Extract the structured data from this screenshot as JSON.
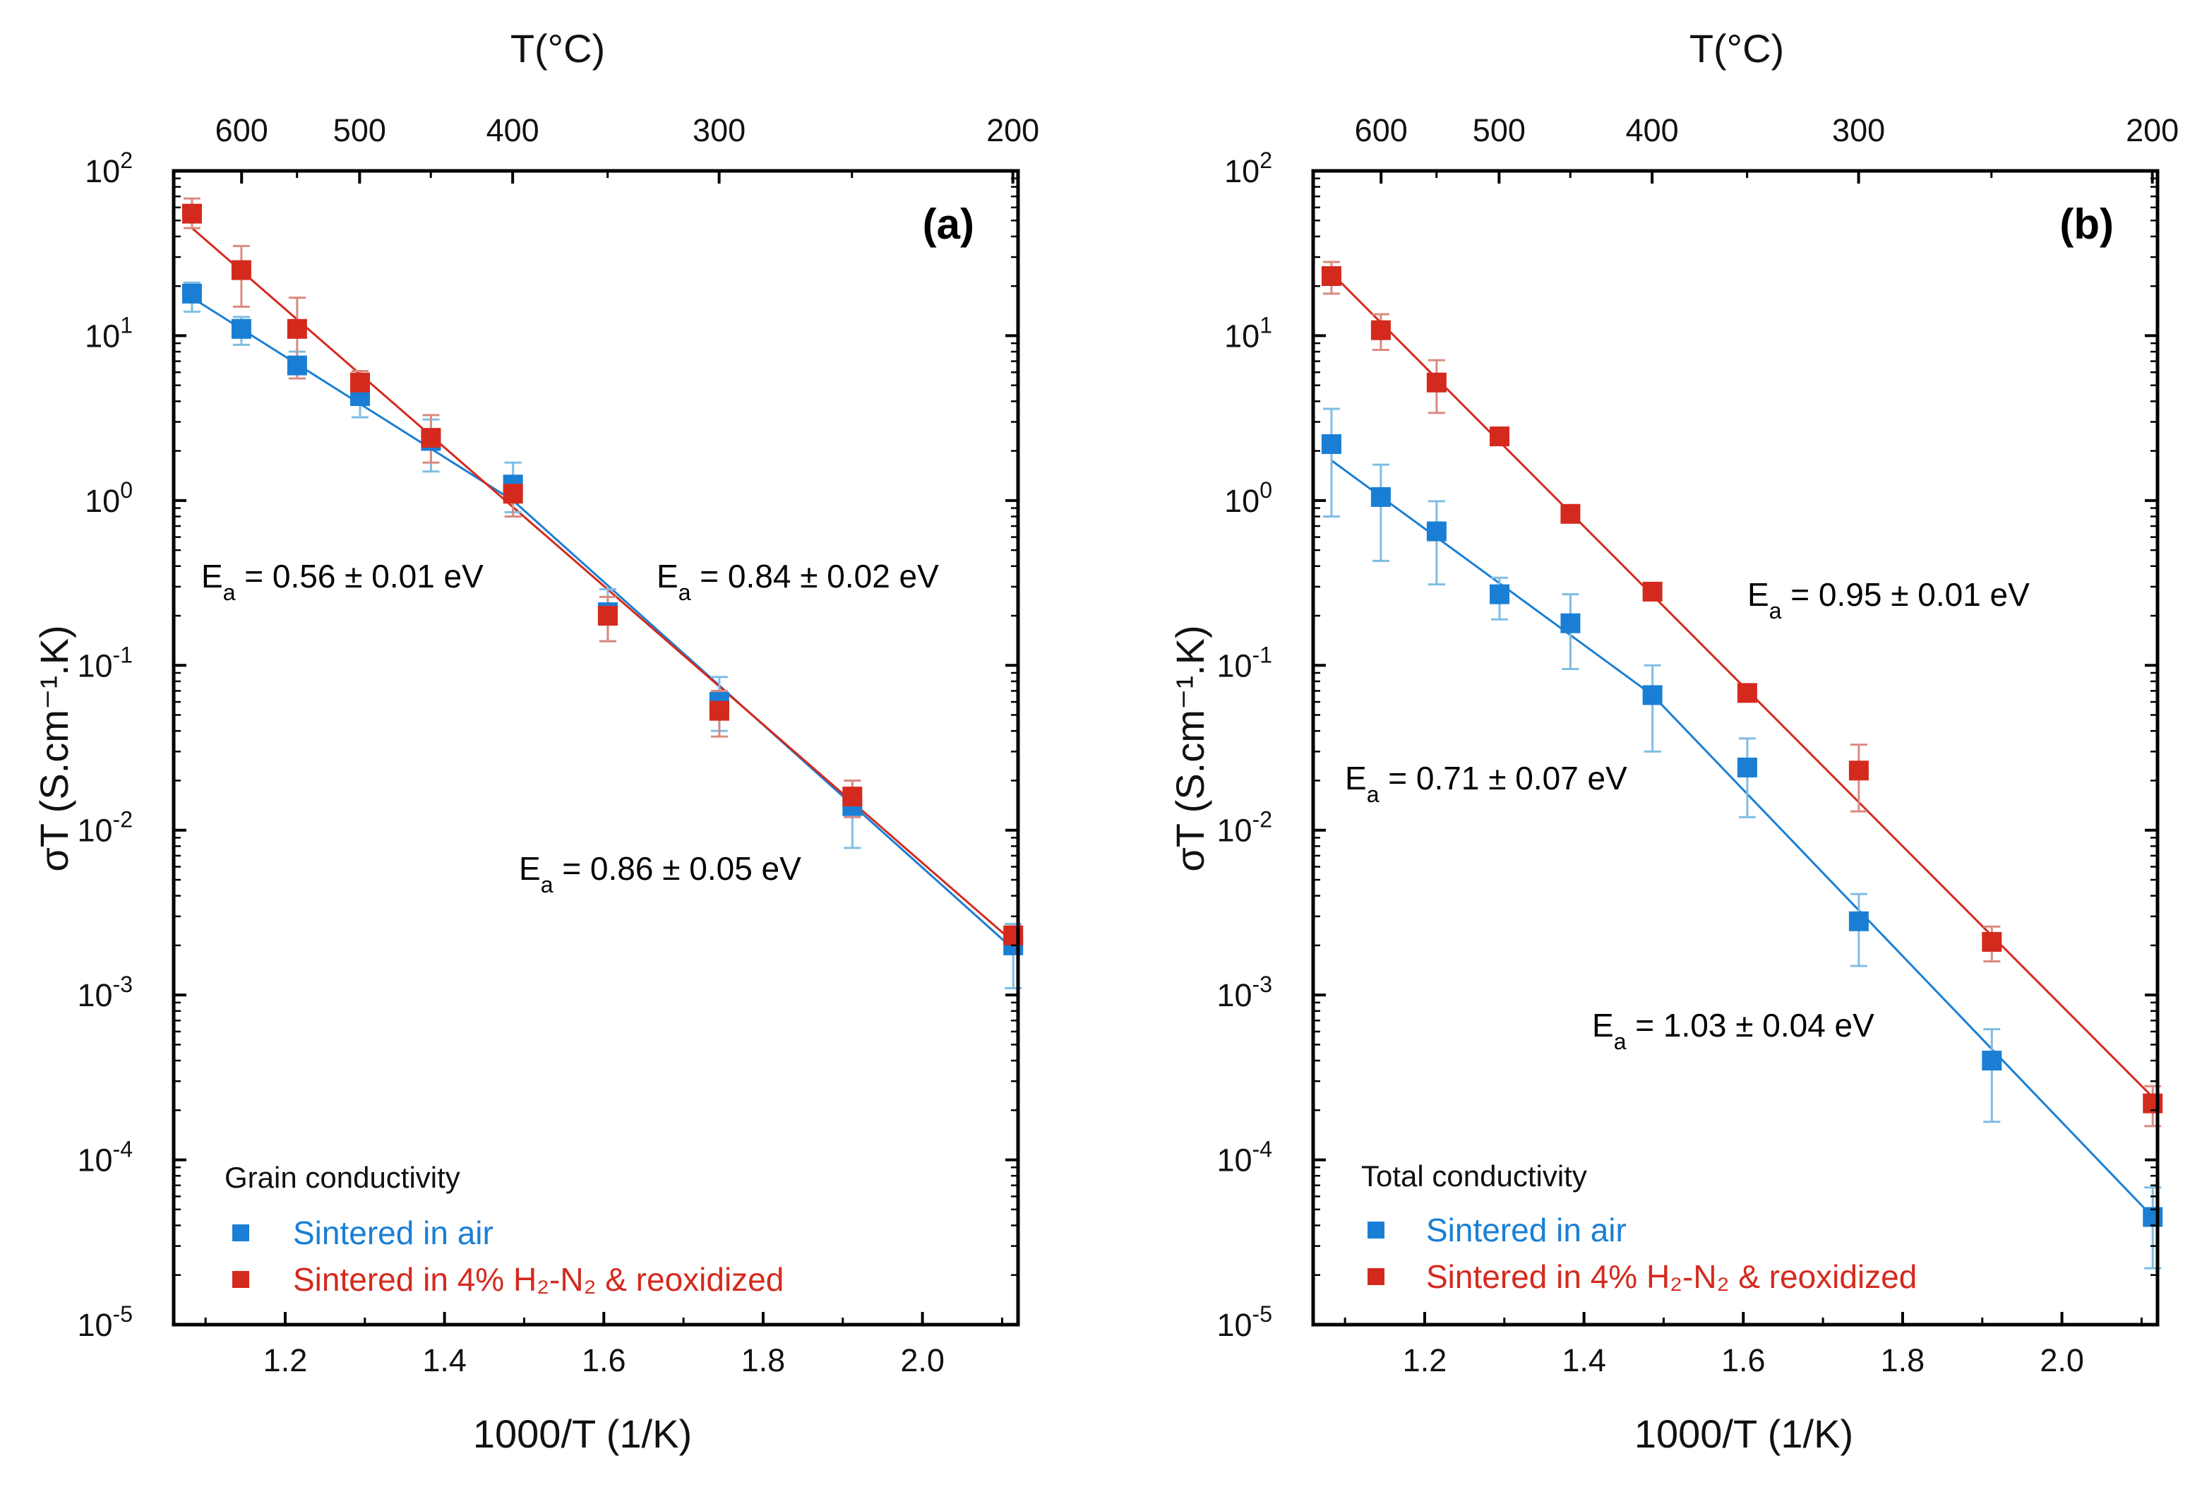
{
  "chart_data": [
    {
      "type": "scatter",
      "panel": "(a)",
      "top_axis_title": "T(°C)",
      "top_ticks": [
        "600",
        "500",
        "400",
        "300",
        "200"
      ],
      "top_tick_values_C": [
        600,
        500,
        400,
        300,
        200
      ],
      "xlabel": "1000/T (1/K)",
      "ylabel": "σT (S.cm⁻¹.K)",
      "xlim": [
        1.06,
        2.12
      ],
      "ylim_log10": [
        -5,
        2
      ],
      "x_ticks": [
        "1.2",
        "1.4",
        "1.6",
        "1.8",
        "2.0"
      ],
      "x_tick_values": [
        1.2,
        1.4,
        1.6,
        1.8,
        2.0
      ],
      "y_tick_exponents": [
        "2",
        "1",
        "0",
        "-1",
        "-2",
        "-3",
        "-4",
        "-5"
      ],
      "legend_title": "Grain conductivity",
      "series": [
        {
          "name": "Sintered in air",
          "color": "#1a7fd4",
          "x": [
            1.083,
            1.145,
            1.215,
            1.294,
            1.383,
            1.486,
            1.605,
            1.745,
            1.912,
            2.114
          ],
          "y": [
            18,
            11,
            6.6,
            4.3,
            2.3,
            1.25,
            0.21,
            0.06,
            0.014,
            0.002
          ],
          "err_low": [
            14,
            8.8,
            5.5,
            3.2,
            1.5,
            0.85,
            0.14,
            0.04,
            0.0078,
            0.0011
          ],
          "err_high": [
            21,
            13,
            8.0,
            5.6,
            3.1,
            1.7,
            0.29,
            0.085,
            0.02,
            0.0027
          ],
          "fit_segments": [
            {
              "x": [
                1.083,
                1.486
              ],
              "y": [
                17,
                1.0
              ]
            },
            {
              "x": [
                1.486,
                2.114
              ],
              "y": [
                1.0,
                0.0019
              ]
            }
          ]
        },
        {
          "name": "Sintered in 4% H₂-N₂ & reoxidized",
          "color": "#d42a1e",
          "x": [
            1.083,
            1.145,
            1.215,
            1.294,
            1.383,
            1.486,
            1.605,
            1.745,
            1.912,
            2.114
          ],
          "y": [
            55,
            25,
            11,
            5.2,
            2.4,
            1.1,
            0.2,
            0.053,
            0.016,
            0.0023
          ],
          "err_low": [
            45,
            15,
            5.5,
            4.5,
            1.7,
            0.8,
            0.14,
            0.037,
            0.012,
            0.002
          ],
          "err_high": [
            68,
            35,
            17,
            6.1,
            3.3,
            1.4,
            0.26,
            0.07,
            0.02,
            0.0026
          ],
          "fit_segments": [
            {
              "x": [
                1.083,
                2.114
              ],
              "y": [
                45,
                0.0021
              ]
            }
          ]
        }
      ],
      "annotations": [
        {
          "pre": "E",
          "sub": "a",
          "post": " = 0.56 ± 0.01 eV",
          "color": "#1a7fd4"
        },
        {
          "pre": "E",
          "sub": "a",
          "post": " = 0.84 ± 0.02 eV",
          "color": "#d42a1e"
        },
        {
          "pre": "E",
          "sub": "a",
          "post": " = 0.86 ± 0.05 eV",
          "color": "#1a7fd4"
        }
      ]
    },
    {
      "type": "scatter",
      "panel": "(b)",
      "top_axis_title": "T(°C)",
      "top_ticks": [
        "600",
        "500",
        "400",
        "300",
        "200"
      ],
      "top_tick_values_C": [
        600,
        500,
        400,
        300,
        200
      ],
      "xlabel": "1000/T (1/K)",
      "ylabel": "σT (S.cm⁻¹.K)",
      "xlim": [
        1.06,
        2.12
      ],
      "ylim_log10": [
        -5,
        2
      ],
      "x_ticks": [
        "1.2",
        "1.4",
        "1.6",
        "1.8",
        "2.0"
      ],
      "x_tick_values": [
        1.2,
        1.4,
        1.6,
        1.8,
        2.0
      ],
      "y_tick_exponents": [
        "2",
        "1",
        "0",
        "-1",
        "-2",
        "-3",
        "-4",
        "-5"
      ],
      "legend_title": "Total conductivity",
      "series": [
        {
          "name": "Sintered in air",
          "color": "#1a7fd4",
          "x": [
            1.083,
            1.145,
            1.215,
            1.294,
            1.383,
            1.486,
            1.605,
            1.745,
            1.912,
            2.114
          ],
          "y": [
            2.2,
            1.05,
            0.65,
            0.27,
            0.18,
            0.066,
            0.024,
            0.0028,
            0.0004,
            4.5e-05
          ],
          "err_low": [
            0.8,
            0.43,
            0.31,
            0.19,
            0.095,
            0.03,
            0.012,
            0.0015,
            0.00017,
            2.2e-05
          ],
          "err_high": [
            3.6,
            1.65,
            0.99,
            0.34,
            0.27,
            0.1,
            0.036,
            0.0041,
            0.00062,
            6.8e-05
          ],
          "fit_segments": [
            {
              "x": [
                1.083,
                1.486
              ],
              "y": [
                1.75,
                0.066
              ]
            },
            {
              "x": [
                1.486,
                2.114
              ],
              "y": [
                0.066,
                4.5e-05
              ]
            }
          ]
        },
        {
          "name": "Sintered in 4% H₂-N₂ & reoxidized",
          "color": "#d42a1e",
          "x": [
            1.083,
            1.145,
            1.215,
            1.294,
            1.383,
            1.486,
            1.605,
            1.745,
            1.912,
            2.114
          ],
          "y": [
            23,
            10.8,
            5.2,
            2.45,
            0.83,
            0.28,
            0.068,
            0.023,
            0.0021,
            0.00022
          ],
          "err_low": [
            18,
            8.2,
            3.4,
            2.2,
            0.75,
            0.26,
            0.062,
            0.013,
            0.0016,
            0.00016
          ],
          "err_high": [
            28,
            13.5,
            7.1,
            2.7,
            0.91,
            0.3,
            0.074,
            0.033,
            0.0026,
            0.00028
          ],
          "fit_segments": [
            {
              "x": [
                1.083,
                2.114
              ],
              "y": [
                24,
                0.00024
              ]
            }
          ]
        }
      ],
      "annotations": [
        {
          "pre": "E",
          "sub": "a",
          "post": " = 0.95 ± 0.01 eV",
          "color": "#d42a1e"
        },
        {
          "pre": "E",
          "sub": "a",
          "post": " = 0.71 ± 0.07 eV",
          "color": "#1a7fd4"
        },
        {
          "pre": "E",
          "sub": "a",
          "post": " = 1.03 ± 0.04 eV",
          "color": "#1a7fd4"
        }
      ]
    }
  ]
}
